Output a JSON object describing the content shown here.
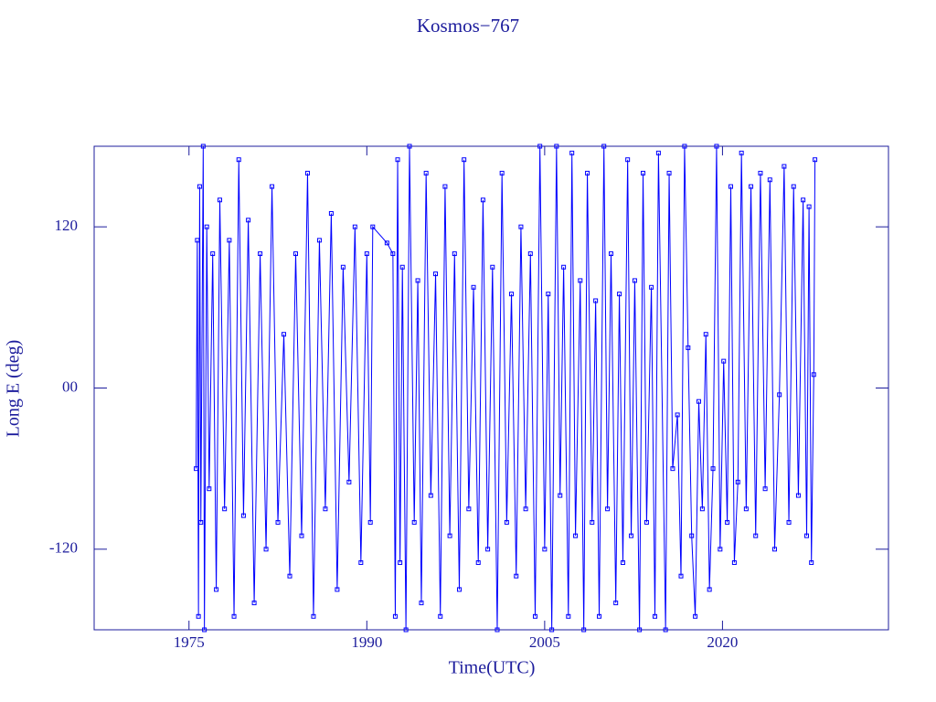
{
  "chart_data": {
    "type": "line",
    "title": "Kosmos−767",
    "xlabel": "Time(UTC)",
    "ylabel": "Long E (deg)",
    "color": "#0000ff",
    "markers": true,
    "xlim": [
      1967,
      2034
    ],
    "xticks": [
      1975,
      1990,
      2005,
      2020
    ],
    "ylim": [
      -180,
      180
    ],
    "yticks": [
      -120,
      {
        "value": 0,
        "label": "00"
      },
      120
    ],
    "x": [
      1975.6,
      1975.7,
      1975.8,
      1975.9,
      1976.0,
      1976.2,
      1976.3,
      1976.5,
      1976.7,
      1977.0,
      1977.3,
      1977.6,
      1978.0,
      1978.4,
      1978.8,
      1979.2,
      1979.6,
      1980.0,
      1980.5,
      1981.0,
      1981.5,
      1982.0,
      1982.5,
      1983.0,
      1983.5,
      1984.0,
      1984.5,
      1985.0,
      1985.5,
      1986.0,
      1986.5,
      1987.0,
      1987.5,
      1988.0,
      1988.5,
      1989.0,
      1989.5,
      1990.0,
      1990.3,
      1990.5,
      1991.7,
      1992.2,
      1992.4,
      1992.6,
      1992.8,
      1993.0,
      1993.3,
      1993.6,
      1994.0,
      1994.3,
      1994.6,
      1995.0,
      1995.4,
      1995.8,
      1996.2,
      1996.6,
      1997.0,
      1997.4,
      1997.8,
      1998.2,
      1998.6,
      1999.0,
      1999.4,
      1999.8,
      2000.2,
      2000.6,
      2001.0,
      2001.4,
      2001.8,
      2002.2,
      2002.6,
      2003.0,
      2003.4,
      2003.8,
      2004.2,
      2004.6,
      2005.0,
      2005.3,
      2005.6,
      2006.0,
      2006.3,
      2006.6,
      2007.0,
      2007.3,
      2007.6,
      2008.0,
      2008.3,
      2008.6,
      2009.0,
      2009.3,
      2009.6,
      2010.0,
      2010.3,
      2010.6,
      2011.0,
      2011.3,
      2011.6,
      2012.0,
      2012.3,
      2012.6,
      2013.0,
      2013.3,
      2013.6,
      2014.0,
      2014.3,
      2014.6,
      2015.2,
      2015.5,
      2015.8,
      2016.2,
      2016.5,
      2016.8,
      2017.1,
      2017.4,
      2017.7,
      2018.0,
      2018.3,
      2018.6,
      2018.9,
      2019.2,
      2019.5,
      2019.8,
      2020.1,
      2020.4,
      2020.7,
      2021.0,
      2021.3,
      2021.6,
      2022.0,
      2022.4,
      2022.8,
      2023.2,
      2023.6,
      2024.0,
      2024.4,
      2024.8,
      2025.2,
      2025.6,
      2026.0,
      2026.4,
      2026.8,
      2027.1,
      2027.3,
      2027.5,
      2027.7,
      2027.8
    ],
    "values": [
      -60,
      110,
      -170,
      150,
      -100,
      180,
      -180,
      120,
      -75,
      100,
      -150,
      140,
      -90,
      110,
      -170,
      170,
      -95,
      125,
      -160,
      100,
      -120,
      150,
      -100,
      40,
      -140,
      100,
      -110,
      160,
      -170,
      110,
      -90,
      130,
      -150,
      90,
      -70,
      120,
      -130,
      100,
      -100,
      120,
      108,
      100,
      -170,
      170,
      -130,
      90,
      -180,
      180,
      -100,
      80,
      -160,
      160,
      -80,
      85,
      -170,
      150,
      -110,
      100,
      -150,
      170,
      -90,
      75,
      -130,
      140,
      -120,
      90,
      -180,
      160,
      -100,
      70,
      -140,
      120,
      -90,
      100,
      -170,
      180,
      -120,
      70,
      -180,
      180,
      -80,
      90,
      -170,
      175,
      -110,
      80,
      -180,
      160,
      -100,
      65,
      -170,
      180,
      -90,
      100,
      -160,
      70,
      -130,
      170,
      -110,
      80,
      -180,
      160,
      -100,
      75,
      -170,
      175,
      -180,
      160,
      -60,
      -20,
      -140,
      180,
      30,
      -110,
      -170,
      -10,
      -90,
      40,
      -150,
      -60,
      180,
      -120,
      20,
      -100,
      150,
      -130,
      -70,
      175,
      -90,
      150,
      -110,
      160,
      -75,
      155,
      -120,
      -5,
      165,
      -100,
      150,
      -80,
      140,
      -110,
      135,
      -130,
      10,
      170
    ]
  }
}
